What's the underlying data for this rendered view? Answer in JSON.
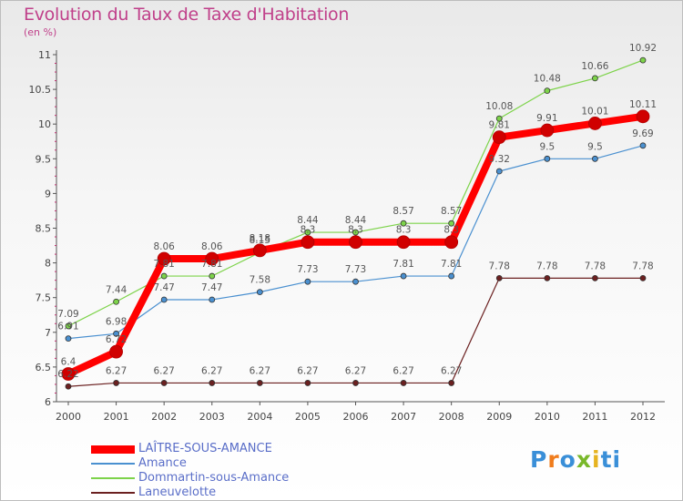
{
  "title": "Evolution du Taux de Taxe d'Habitation",
  "subtitle": "(en %)",
  "logo": {
    "p1": "P",
    "p2": "r",
    "p3": "o",
    "p4": "x",
    "p5": "i",
    "p6": "ti"
  },
  "chart_data": {
    "type": "line",
    "title": "Evolution du Taux de Taxe d'Habitation",
    "ylabel": "(en %)",
    "xlabel": "",
    "ylim": [
      6,
      11
    ],
    "yticks": [
      6,
      6.5,
      7,
      7.5,
      8,
      8.5,
      9,
      9.5,
      10,
      10.5,
      11
    ],
    "ytick_labels": [
      "6",
      "6.5",
      "7",
      "7.5",
      "8",
      "8.5",
      "9",
      "9.5",
      "10",
      "10.5",
      "11"
    ],
    "categories": [
      "2000",
      "2001",
      "2002",
      "2003",
      "2004",
      "2005",
      "2006",
      "2007",
      "2008",
      "2009",
      "2010",
      "2011",
      "2012"
    ],
    "grid": false,
    "legend_position": "bottom-left",
    "series": [
      {
        "name": "Laneuvelotte",
        "color": "#6b2020",
        "width": 1.2,
        "values": [
          6.22,
          6.27,
          6.27,
          6.27,
          6.27,
          6.27,
          6.27,
          6.27,
          6.27,
          7.78,
          7.78,
          7.78,
          7.78
        ],
        "labels": [
          "6.22",
          "6.27",
          "6.27",
          "6.27",
          "6.27",
          "6.27",
          "6.27",
          "6.27",
          "6.27",
          "7.78",
          "7.78",
          "7.78",
          "7.78"
        ]
      },
      {
        "name": "Amance",
        "color": "#4a90d0",
        "width": 1.2,
        "values": [
          6.91,
          6.98,
          7.47,
          7.47,
          7.58,
          7.73,
          7.73,
          7.81,
          7.81,
          9.32,
          9.5,
          9.5,
          9.69
        ],
        "labels": [
          "6.91",
          "6.98",
          "7.47",
          "7.47",
          "7.58",
          "7.73",
          "7.73",
          "7.81",
          "7.81",
          "9.32",
          "9.5",
          "9.5",
          "9.69"
        ]
      },
      {
        "name": "Dommartin-sous-Amance",
        "color": "#7dd34a",
        "width": 1.2,
        "values": [
          7.09,
          7.44,
          7.81,
          7.81,
          8.15,
          8.44,
          8.44,
          8.57,
          8.57,
          10.08,
          10.48,
          10.66,
          10.92
        ],
        "labels": [
          "7.09",
          "7.44",
          "7.81",
          "7.81",
          "8.15",
          "8.44",
          "8.44",
          "8.57",
          "8.57",
          "10.08",
          "10.48",
          "10.66",
          "10.92"
        ]
      },
      {
        "name": "LAÎTRE-SOUS-AMANCE",
        "color": "#ff0000",
        "width": 8,
        "values": [
          6.4,
          6.72,
          8.06,
          8.06,
          8.18,
          8.3,
          8.3,
          8.3,
          8.3,
          9.81,
          9.91,
          10.01,
          10.11
        ],
        "labels": [
          "6.4",
          "6.72",
          "8.06",
          "8.06",
          "8.18",
          "8.3",
          "8.3",
          "8.3",
          "8.3",
          "9.81",
          "9.91",
          "10.01",
          "10.11"
        ]
      }
    ],
    "legend_order": [
      "LAÎTRE-SOUS-AMANCE",
      "Amance",
      "Dommartin-sous-Amance",
      "Laneuvelotte"
    ]
  }
}
